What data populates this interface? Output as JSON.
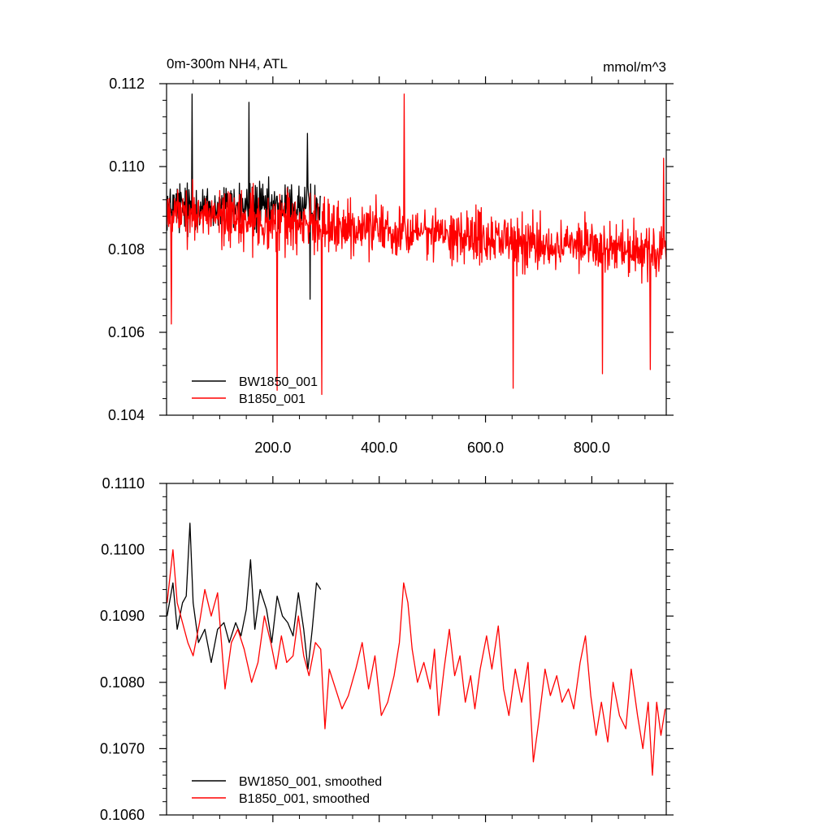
{
  "colors": {
    "black_series": "#000000",
    "red_series": "#ff0000",
    "axis": "#000000"
  },
  "chart_data": [
    {
      "type": "line",
      "title": "0m-300m NH4, ATL",
      "units": "mmol/m^3",
      "xlim": [
        0,
        940
      ],
      "ylim": [
        0.104,
        0.112
      ],
      "xticks": [
        200,
        400,
        600,
        800
      ],
      "xtick_labels": [
        "200.0",
        "400.0",
        "600.0",
        "800.0"
      ],
      "yticks": [
        0.104,
        0.106,
        0.108,
        0.11,
        0.112
      ],
      "ytick_labels": [
        "0.104",
        "0.106",
        "0.108",
        "0.110",
        "0.112"
      ],
      "legend_position": "bottom-left",
      "series": [
        {
          "name": "BW1850_001",
          "color": "#000000",
          "x_range": [
            1,
            290
          ],
          "mean": 0.109,
          "noise_amplitude": 0.00085,
          "extremes": [
            [
              48,
              0.11175
            ],
            [
              155,
              0.11155
            ],
            [
              265,
              0.1108
            ],
            [
              270,
              0.1068
            ]
          ]
        },
        {
          "name": "B1850_001",
          "color": "#ff0000",
          "x_range": [
            1,
            940
          ],
          "trend_start": 0.1089,
          "trend_end": 0.1079,
          "noise_amplitude": 0.0009,
          "extremes": [
            [
              9,
              0.1062
            ],
            [
              208,
              0.1046
            ],
            [
              292,
              0.1045
            ],
            [
              447,
              0.11175
            ],
            [
              652,
              0.10465
            ],
            [
              820,
              0.105
            ],
            [
              910,
              0.1051
            ],
            [
              935,
              0.1102
            ]
          ]
        }
      ]
    },
    {
      "type": "line",
      "title": "",
      "units": "",
      "xlim": [
        0,
        940
      ],
      "ylim": [
        0.106,
        0.111
      ],
      "yticks": [
        0.106,
        0.107,
        0.108,
        0.109,
        0.11,
        0.111
      ],
      "ytick_labels": [
        "0.1060",
        "0.1070",
        "0.1080",
        "0.1090",
        "0.1100",
        "0.1110"
      ],
      "legend_position": "bottom-left",
      "series": [
        {
          "name": "BW1850_001, smoothed",
          "color": "#000000",
          "points": [
            [
              1,
              0.109
            ],
            [
              12,
              0.1095
            ],
            [
              20,
              0.1088
            ],
            [
              30,
              0.1092
            ],
            [
              37,
              0.1093
            ],
            [
              44,
              0.1104
            ],
            [
              50,
              0.1092
            ],
            [
              60,
              0.1086
            ],
            [
              72,
              0.1088
            ],
            [
              84,
              0.1083
            ],
            [
              96,
              0.1088
            ],
            [
              108,
              0.1089
            ],
            [
              118,
              0.1086
            ],
            [
              130,
              0.1089
            ],
            [
              140,
              0.1087
            ],
            [
              150,
              0.1091
            ],
            [
              158,
              0.10985
            ],
            [
              166,
              0.1088
            ],
            [
              176,
              0.1094
            ],
            [
              188,
              0.1091
            ],
            [
              198,
              0.1086
            ],
            [
              208,
              0.1093
            ],
            [
              218,
              0.109
            ],
            [
              228,
              0.1089
            ],
            [
              238,
              0.1087
            ],
            [
              248,
              0.10935
            ],
            [
              258,
              0.1088
            ],
            [
              266,
              0.1082
            ],
            [
              274,
              0.1088
            ],
            [
              282,
              0.1095
            ],
            [
              290,
              0.1094
            ]
          ]
        },
        {
          "name": "B1850_001, smoothed",
          "color": "#ff0000",
          "points": [
            [
              1,
              0.1092
            ],
            [
              12,
              0.11
            ],
            [
              20,
              0.1092
            ],
            [
              30,
              0.1089
            ],
            [
              40,
              0.1086
            ],
            [
              50,
              0.1084
            ],
            [
              62,
              0.1089
            ],
            [
              72,
              0.1094
            ],
            [
              84,
              0.109
            ],
            [
              96,
              0.10935
            ],
            [
              110,
              0.1079
            ],
            [
              122,
              0.1086
            ],
            [
              134,
              0.1088
            ],
            [
              146,
              0.1085
            ],
            [
              160,
              0.108
            ],
            [
              172,
              0.1083
            ],
            [
              184,
              0.109
            ],
            [
              196,
              0.1086
            ],
            [
              206,
              0.1082
            ],
            [
              216,
              0.1087
            ],
            [
              226,
              0.1083
            ],
            [
              238,
              0.1084
            ],
            [
              248,
              0.109
            ],
            [
              258,
              0.1084
            ],
            [
              268,
              0.1081
            ],
            [
              280,
              0.1086
            ],
            [
              290,
              0.1085
            ],
            [
              298,
              0.1073
            ],
            [
              306,
              0.1082
            ],
            [
              318,
              0.1079
            ],
            [
              330,
              0.1076
            ],
            [
              342,
              0.1078
            ],
            [
              356,
              0.1082
            ],
            [
              368,
              0.1086
            ],
            [
              380,
              0.1079
            ],
            [
              392,
              0.1084
            ],
            [
              404,
              0.1075
            ],
            [
              416,
              0.1077
            ],
            [
              428,
              0.1081
            ],
            [
              438,
              0.1086
            ],
            [
              446,
              0.1095
            ],
            [
              454,
              0.1092
            ],
            [
              462,
              0.1085
            ],
            [
              472,
              0.108
            ],
            [
              484,
              0.1083
            ],
            [
              496,
              0.1079
            ],
            [
              504,
              0.1085
            ],
            [
              512,
              0.1075
            ],
            [
              522,
              0.1082
            ],
            [
              532,
              0.1088
            ],
            [
              542,
              0.1081
            ],
            [
              552,
              0.1084
            ],
            [
              562,
              0.1077
            ],
            [
              572,
              0.1081
            ],
            [
              580,
              0.1076
            ],
            [
              590,
              0.1082
            ],
            [
              602,
              0.1087
            ],
            [
              612,
              0.1082
            ],
            [
              624,
              0.10885
            ],
            [
              634,
              0.1079
            ],
            [
              644,
              0.1075
            ],
            [
              656,
              0.1082
            ],
            [
              668,
              0.1077
            ],
            [
              680,
              0.1083
            ],
            [
              690,
              0.1068
            ],
            [
              700,
              0.1074
            ],
            [
              712,
              0.1082
            ],
            [
              722,
              0.1078
            ],
            [
              734,
              0.1081
            ],
            [
              744,
              0.1077
            ],
            [
              756,
              0.1079
            ],
            [
              766,
              0.1076
            ],
            [
              778,
              0.1083
            ],
            [
              788,
              0.1087
            ],
            [
              798,
              0.1078
            ],
            [
              808,
              0.1072
            ],
            [
              818,
              0.1077
            ],
            [
              830,
              0.1071
            ],
            [
              840,
              0.108
            ],
            [
              852,
              0.1075
            ],
            [
              864,
              0.1073
            ],
            [
              874,
              0.1082
            ],
            [
              886,
              0.1075
            ],
            [
              896,
              0.107
            ],
            [
              906,
              0.1077
            ],
            [
              914,
              0.1066
            ],
            [
              922,
              0.1077
            ],
            [
              930,
              0.1072
            ],
            [
              938,
              0.1076
            ]
          ]
        }
      ]
    }
  ]
}
